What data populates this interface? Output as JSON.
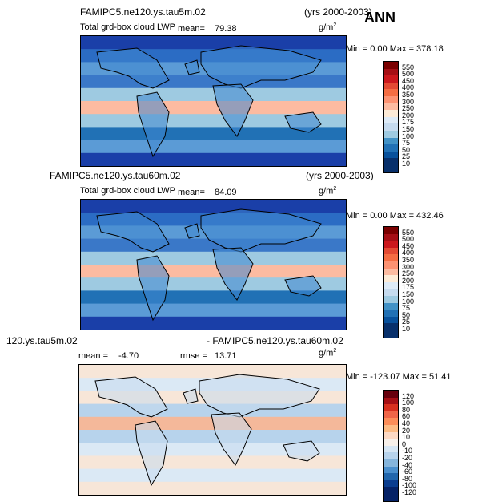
{
  "annotation": "ANN",
  "panels": [
    {
      "case_name": "FAMIPC5.ne120.ys.tau5m.02",
      "years": "(yrs 2000-2003)",
      "variable": "Total grd-box cloud LWP",
      "mean_text": "mean=",
      "mean_value": "79.38",
      "units": "g/m",
      "units_exp": "2",
      "min_max": "Min =    0.00 Max = 378.18",
      "palette": "blue-red",
      "colorbar": [
        "550",
        "500",
        "450",
        "400",
        "350",
        "300",
        "250",
        "200",
        "175",
        "150",
        "100",
        "75",
        "50",
        "25",
        "10"
      ]
    },
    {
      "case_name": "FAMIPC5.ne120.ys.tau60m.02",
      "years": "(yrs 2000-2003)",
      "variable": "Total grd-box cloud LWP",
      "mean_text": "mean=",
      "mean_value": "84.09",
      "units": "g/m",
      "units_exp": "2",
      "min_max": "Min =    0.00 Max = 432.46",
      "palette": "blue-red",
      "colorbar": [
        "550",
        "500",
        "450",
        "400",
        "350",
        "300",
        "250",
        "200",
        "175",
        "150",
        "100",
        "75",
        "50",
        "25",
        "10"
      ]
    },
    {
      "case_left": "120.ys.tau5m.02",
      "case_right": "- FAMIPC5.ne120.ys.tau60m.02",
      "mean_text": "mean =",
      "mean_value": "-4.70",
      "rmse_text": "rmse =",
      "rmse_value": "13.71",
      "units": "g/m",
      "units_exp": "2",
      "min_max": "Min = -123.07 Max =  51.41",
      "palette": "diverging",
      "colorbar": [
        "120",
        "100",
        "80",
        "60",
        "40",
        "20",
        "10",
        "0",
        "-10",
        "-20",
        "-40",
        "-60",
        "-80",
        "-100",
        "-120"
      ]
    }
  ],
  "colors": {
    "blue_red": [
      "#7a0000",
      "#a50f15",
      "#cb181d",
      "#e34a33",
      "#f46d43",
      "#fc9272",
      "#fcbba1",
      "#fdebd7",
      "#deebf7",
      "#c6dbef",
      "#9ecae1",
      "#4292c6",
      "#2171b5",
      "#08519c",
      "#08306b"
    ],
    "diverging": [
      "#67000d",
      "#a50f15",
      "#d7301f",
      "#ef6548",
      "#fc8d59",
      "#fdbb84",
      "#fdd9c4",
      "#f7f0ea",
      "#d6e6f4",
      "#b7d3ec",
      "#85b5dc",
      "#4a8fcd",
      "#2166ac",
      "#0a3d8f",
      "#052266"
    ]
  }
}
